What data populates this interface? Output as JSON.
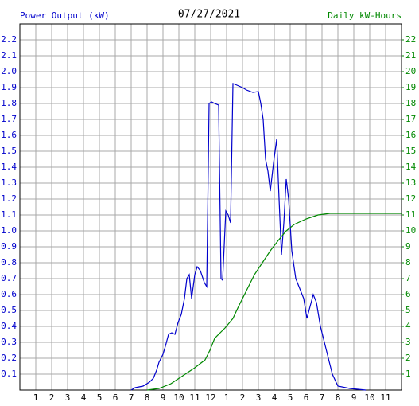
{
  "chart_data": {
    "type": "line",
    "title": "07/27/2021",
    "ylabel": "Power Output (kW)",
    "y2label": "Daily kW-Hours",
    "xlim": [
      0,
      24
    ],
    "xticks": [
      1,
      2,
      3,
      4,
      5,
      6,
      7,
      8,
      9,
      10,
      11,
      12,
      {
        "value": 13,
        "label": "1"
      },
      {
        "value": 14,
        "label": "2"
      },
      {
        "value": 15,
        "label": "3"
      },
      {
        "value": 16,
        "label": "4"
      },
      {
        "value": 17,
        "label": "5"
      },
      {
        "value": 18,
        "label": "6"
      },
      {
        "value": 19,
        "label": "7"
      },
      {
        "value": 20,
        "label": "8"
      },
      {
        "value": 21,
        "label": "9"
      },
      {
        "value": 22,
        "label": "10"
      },
      {
        "value": 23,
        "label": "11"
      }
    ],
    "ylim": [
      0,
      2.3
    ],
    "yticks": [
      0.1,
      0.2,
      0.3,
      0.4,
      0.5,
      0.6,
      0.7,
      0.8,
      0.9,
      {
        "value": 1.0,
        "label": "1.0"
      },
      1.1,
      1.2,
      1.3,
      1.4,
      1.5,
      1.6,
      1.7,
      1.8,
      1.9,
      {
        "value": 2.0,
        "label": "2.0"
      },
      2.1,
      2.2
    ],
    "y2lim": [
      0,
      23
    ],
    "y2ticks": [
      1,
      2,
      3,
      4,
      5,
      6,
      7,
      8,
      9,
      10,
      11,
      12,
      13,
      14,
      15,
      16,
      17,
      18,
      19,
      20,
      21,
      22
    ],
    "grid": true,
    "series": [
      {
        "color": "#0000cc",
        "x": [
          7.0,
          7.25,
          7.75,
          8.15,
          8.4,
          8.6,
          8.75,
          9.0,
          9.15,
          9.35,
          9.55,
          9.75,
          9.95,
          10.15,
          10.35,
          10.5,
          10.65,
          10.8,
          11.0,
          11.15,
          11.35,
          11.6,
          11.75,
          11.9,
          12.05,
          12.25,
          12.5,
          12.65,
          12.75,
          12.95,
          13.1,
          13.25,
          13.4,
          13.65,
          14.0,
          14.25,
          14.65,
          15.0,
          15.15,
          15.3,
          15.45,
          15.6,
          15.75,
          15.95,
          16.15,
          16.3,
          16.45,
          16.6,
          16.75,
          16.9,
          17.1,
          17.35,
          17.65,
          17.85,
          18.05,
          18.25,
          18.45,
          18.65,
          18.9,
          19.15,
          19.4,
          19.65,
          20.0,
          20.75,
          21.75
        ],
        "values": [
          0,
          0.015,
          0.025,
          0.05,
          0.075,
          0.125,
          0.175,
          0.225,
          0.275,
          0.35,
          0.36,
          0.35,
          0.425,
          0.475,
          0.575,
          0.7,
          0.725,
          0.575,
          0.725,
          0.775,
          0.75,
          0.675,
          0.65,
          1.8,
          1.81,
          1.8,
          1.79,
          0.7,
          0.69,
          1.125,
          1.1,
          1.05,
          1.925,
          1.915,
          1.9,
          1.885,
          1.87,
          1.875,
          1.8,
          1.7,
          1.45,
          1.375,
          1.25,
          1.425,
          1.575,
          1.2,
          0.85,
          1.05,
          1.325,
          1.2,
          0.875,
          0.7,
          0.625,
          0.575,
          0.45,
          0.525,
          0.6,
          0.55,
          0.4,
          0.3,
          0.2,
          0.1,
          0.025,
          0.01,
          0
        ]
      },
      {
        "color": "#008800",
        "axis": "y2",
        "x": [
          8.0,
          8.75,
          9.5,
          10.25,
          11.0,
          11.65,
          11.95,
          12.25,
          12.9,
          13.4,
          13.75,
          14.25,
          14.75,
          15.25,
          15.75,
          16.25,
          16.75,
          17.25,
          18.0,
          18.75,
          19.5,
          24
        ],
        "values": [
          0,
          0.1,
          0.4,
          0.9,
          1.4,
          1.9,
          2.5,
          3.25,
          3.9,
          4.5,
          5.25,
          6.25,
          7.25,
          8.0,
          8.75,
          9.4,
          10.0,
          10.4,
          10.75,
          11.0,
          11.1,
          11.1
        ]
      }
    ]
  }
}
